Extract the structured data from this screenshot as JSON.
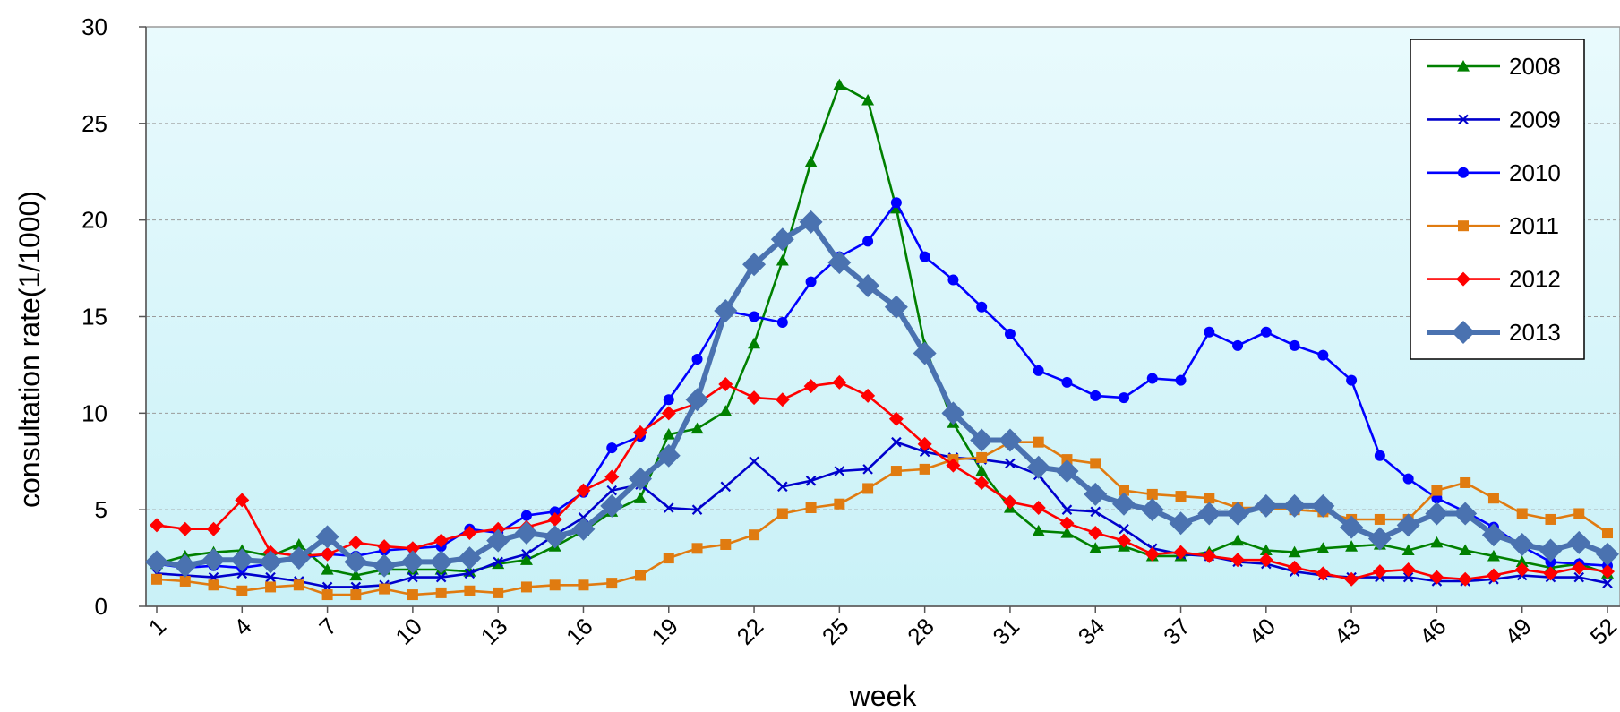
{
  "chart_data": {
    "type": "line",
    "title": "",
    "xlabel": "week",
    "ylabel": "consultation rate(1/1000)",
    "ylim": [
      0,
      30
    ],
    "xlim": [
      1,
      52
    ],
    "yticks": [
      "0",
      "5",
      "10",
      "15",
      "20",
      "25",
      "30"
    ],
    "xticks": [
      "1",
      "4",
      "7",
      "10",
      "13",
      "16",
      "19",
      "22",
      "25",
      "28",
      "31",
      "34",
      "37",
      "40",
      "43",
      "46",
      "49",
      "52"
    ],
    "grid": "horizontal",
    "legend_position": "top-right",
    "x": [
      1,
      2,
      3,
      4,
      5,
      6,
      7,
      8,
      9,
      10,
      11,
      12,
      13,
      14,
      15,
      16,
      17,
      18,
      19,
      20,
      21,
      22,
      23,
      24,
      25,
      26,
      27,
      28,
      29,
      30,
      31,
      32,
      33,
      34,
      35,
      36,
      37,
      38,
      39,
      40,
      41,
      42,
      43,
      44,
      45,
      46,
      47,
      48,
      49,
      50,
      51,
      52
    ],
    "series": [
      {
        "name": "2008",
        "color": "#008000",
        "marker": "triangle",
        "values": [
          2.2,
          2.6,
          2.8,
          2.9,
          2.6,
          3.2,
          1.9,
          1.6,
          1.9,
          1.9,
          1.9,
          1.8,
          2.2,
          2.4,
          3.1,
          3.9,
          4.9,
          5.6,
          8.9,
          9.2,
          10.1,
          13.6,
          17.9,
          23.0,
          27.0,
          26.2,
          20.6,
          13.5,
          9.5,
          7.0,
          5.1,
          3.9,
          3.8,
          3.0,
          3.1,
          2.6,
          2.6,
          2.8,
          3.4,
          2.9,
          2.8,
          3.0,
          3.1,
          3.2,
          2.9,
          3.3,
          2.9,
          2.6,
          2.3,
          2.0,
          2.2,
          1.7
        ]
      },
      {
        "name": "2009",
        "color": "#0000cc",
        "marker": "x",
        "values": [
          1.7,
          1.6,
          1.5,
          1.7,
          1.5,
          1.3,
          1.0,
          1.0,
          1.1,
          1.5,
          1.5,
          1.7,
          2.3,
          2.7,
          3.7,
          4.6,
          6.0,
          6.3,
          5.1,
          5.0,
          6.2,
          7.5,
          6.2,
          6.5,
          7.0,
          7.1,
          8.5,
          8.0,
          7.7,
          7.6,
          7.4,
          6.8,
          5.0,
          4.9,
          4.0,
          3.0,
          2.7,
          2.6,
          2.3,
          2.2,
          1.8,
          1.6,
          1.5,
          1.5,
          1.5,
          1.3,
          1.3,
          1.4,
          1.6,
          1.5,
          1.5,
          1.2
        ]
      },
      {
        "name": "2010",
        "color": "#0000ff",
        "marker": "circle",
        "values": [
          2.2,
          2.0,
          2.1,
          2.0,
          2.2,
          2.5,
          2.7,
          2.6,
          2.9,
          3.0,
          3.1,
          4.0,
          3.8,
          4.7,
          4.9,
          5.9,
          8.2,
          8.8,
          10.7,
          12.8,
          15.3,
          15.0,
          14.7,
          16.8,
          18.1,
          18.9,
          20.9,
          18.1,
          16.9,
          15.5,
          14.1,
          12.2,
          11.6,
          10.9,
          10.8,
          11.8,
          11.7,
          14.2,
          13.5,
          14.2,
          13.5,
          13.0,
          11.7,
          7.8,
          6.6,
          5.6,
          4.9,
          4.1,
          3.1,
          2.3,
          2.2,
          2.1
        ]
      },
      {
        "name": "2011",
        "color": "#e07b10",
        "marker": "square",
        "values": [
          1.4,
          1.3,
          1.1,
          0.8,
          1.0,
          1.1,
          0.6,
          0.6,
          0.9,
          0.6,
          0.7,
          0.8,
          0.7,
          1.0,
          1.1,
          1.1,
          1.2,
          1.6,
          2.5,
          3.0,
          3.2,
          3.7,
          4.8,
          5.1,
          5.3,
          6.1,
          7.0,
          7.1,
          7.6,
          7.7,
          8.5,
          8.5,
          7.6,
          7.4,
          6.0,
          5.8,
          5.7,
          5.6,
          5.1,
          5.1,
          5.0,
          4.9,
          4.5,
          4.5,
          4.5,
          6.0,
          6.4,
          5.6,
          4.8,
          4.5,
          4.8,
          3.8
        ]
      },
      {
        "name": "2012",
        "color": "#ff0000",
        "marker": "diamond",
        "values": [
          4.2,
          4.0,
          4.0,
          5.5,
          2.8,
          2.6,
          2.7,
          3.3,
          3.1,
          3.0,
          3.4,
          3.8,
          4.0,
          4.1,
          4.5,
          6.0,
          6.7,
          9.0,
          10.0,
          10.5,
          11.5,
          10.8,
          10.7,
          11.4,
          11.6,
          10.9,
          9.7,
          8.4,
          7.3,
          6.4,
          5.4,
          5.1,
          4.3,
          3.8,
          3.4,
          2.7,
          2.8,
          2.6,
          2.4,
          2.4,
          2.0,
          1.7,
          1.4,
          1.8,
          1.9,
          1.5,
          1.4,
          1.6,
          1.9,
          1.7,
          2.0,
          1.8
        ]
      },
      {
        "name": "2013",
        "color": "#4a72b0",
        "marker": "diamond-large",
        "values": [
          2.3,
          2.1,
          2.4,
          2.4,
          2.3,
          2.5,
          3.6,
          2.3,
          2.1,
          2.3,
          2.3,
          2.5,
          3.4,
          3.8,
          3.6,
          4.0,
          5.2,
          6.6,
          7.8,
          10.7,
          15.3,
          17.7,
          19.0,
          19.9,
          17.8,
          16.6,
          15.5,
          13.1,
          10.0,
          8.6,
          8.6,
          7.2,
          7.0,
          5.8,
          5.3,
          5.0,
          4.3,
          4.8,
          4.8,
          5.2,
          5.2,
          5.2,
          4.1,
          3.5,
          4.2,
          4.8,
          4.8,
          3.7,
          3.2,
          2.9,
          3.3,
          2.7
        ]
      }
    ]
  }
}
